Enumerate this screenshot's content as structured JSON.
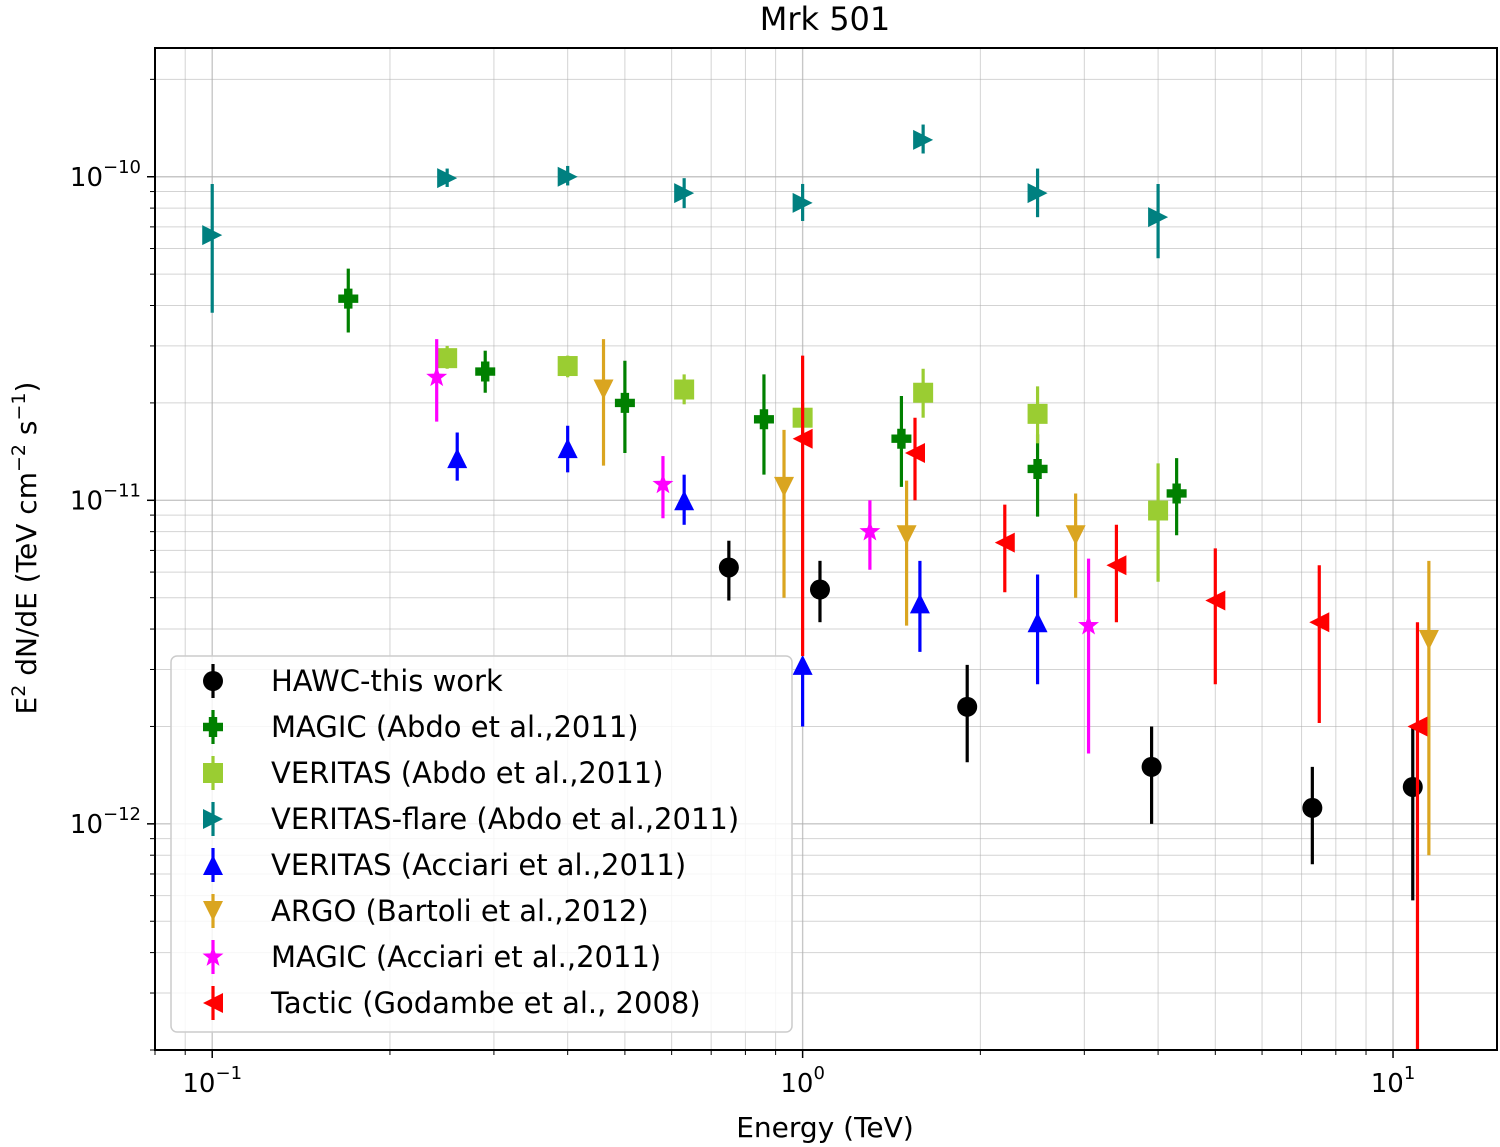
{
  "chart_data": {
    "type": "scatter",
    "title": "Mrk 501",
    "xlabel": "Energy (TeV)",
    "ylabel_parts": {
      "e": "E",
      "e_sup": "2",
      "mid": " dN/dE (TeV cm",
      "cm_sup": "−2",
      "s": " s",
      "s_sup": "−1",
      "end": ")"
    },
    "x_scale": "log",
    "y_scale": "log",
    "xlim": [
      0.08,
      15
    ],
    "ylim": [
      2e-13,
      2.5e-10
    ],
    "grid": true,
    "legend_position": "lower left",
    "x_ticks": [
      {
        "value": 0.1,
        "base": "10",
        "exp": "−1"
      },
      {
        "value": 1,
        "base": "10",
        "exp": "0"
      },
      {
        "value": 10,
        "base": "10",
        "exp": "1"
      }
    ],
    "y_ticks": [
      {
        "value": 1e-12,
        "base": "10",
        "exp": "−12"
      },
      {
        "value": 1e-11,
        "base": "10",
        "exp": "−11"
      },
      {
        "value": 1e-10,
        "base": "10",
        "exp": "−10"
      }
    ],
    "series": [
      {
        "name": "HAWC-this work",
        "color": "#000000",
        "marker": "circle",
        "points": [
          {
            "x": 0.75,
            "y": 6.2e-12,
            "lo": 4.9e-12,
            "hi": 7.5e-12
          },
          {
            "x": 1.07,
            "y": 5.3e-12,
            "lo": 4.2e-12,
            "hi": 6.5e-12
          },
          {
            "x": 1.9,
            "y": 2.3e-12,
            "lo": 1.55e-12,
            "hi": 3.1e-12
          },
          {
            "x": 3.9,
            "y": 1.5e-12,
            "lo": 1e-12,
            "hi": 2e-12
          },
          {
            "x": 7.3,
            "y": 1.12e-12,
            "lo": 7.5e-13,
            "hi": 1.5e-12
          },
          {
            "x": 10.8,
            "y": 1.3e-12,
            "lo": 5.8e-13,
            "hi": 2e-12
          }
        ]
      },
      {
        "name": "MAGIC (Abdo et al.,2011)",
        "color": "#008000",
        "marker": "plus",
        "points": [
          {
            "x": 0.17,
            "y": 4.2e-11,
            "lo": 3.3e-11,
            "hi": 5.2e-11
          },
          {
            "x": 0.29,
            "y": 2.5e-11,
            "lo": 2.15e-11,
            "hi": 2.9e-11
          },
          {
            "x": 0.5,
            "y": 2e-11,
            "lo": 1.4e-11,
            "hi": 2.7e-11
          },
          {
            "x": 0.86,
            "y": 1.78e-11,
            "lo": 1.2e-11,
            "hi": 2.45e-11
          },
          {
            "x": 1.47,
            "y": 1.55e-11,
            "lo": 1.1e-11,
            "hi": 2.1e-11
          },
          {
            "x": 2.5,
            "y": 1.25e-11,
            "lo": 8.9e-12,
            "hi": 1.6e-11
          },
          {
            "x": 4.3,
            "y": 1.05e-11,
            "lo": 7.8e-12,
            "hi": 1.35e-11
          }
        ]
      },
      {
        "name": "VERITAS (Abdo et al.,2011)",
        "color": "#9acd32",
        "marker": "square",
        "points": [
          {
            "x": 0.25,
            "y": 2.75e-11,
            "lo": 2.55e-11,
            "hi": 3e-11
          },
          {
            "x": 0.4,
            "y": 2.6e-11,
            "lo": 2.4e-11,
            "hi": 2.8e-11
          },
          {
            "x": 0.63,
            "y": 2.2e-11,
            "lo": 1.98e-11,
            "hi": 2.45e-11
          },
          {
            "x": 1.0,
            "y": 1.8e-11,
            "lo": 1.6e-11,
            "hi": 2e-11
          },
          {
            "x": 1.6,
            "y": 2.15e-11,
            "lo": 1.8e-11,
            "hi": 2.55e-11
          },
          {
            "x": 2.5,
            "y": 1.85e-11,
            "lo": 1.5e-11,
            "hi": 2.25e-11
          },
          {
            "x": 4.0,
            "y": 9.3e-12,
            "lo": 5.6e-12,
            "hi": 1.3e-11
          }
        ]
      },
      {
        "name": "VERITAS-flare (Abdo et al.,2011)",
        "color": "#008080",
        "marker": "triangle-right",
        "points": [
          {
            "x": 0.1,
            "y": 6.6e-11,
            "lo": 3.8e-11,
            "hi": 9.5e-11
          },
          {
            "x": 0.25,
            "y": 9.9e-11,
            "lo": 9.3e-11,
            "hi": 1.06e-10
          },
          {
            "x": 0.4,
            "y": 1e-10,
            "lo": 9.4e-11,
            "hi": 1.08e-10
          },
          {
            "x": 0.63,
            "y": 8.9e-11,
            "lo": 8e-11,
            "hi": 9.9e-11
          },
          {
            "x": 1.0,
            "y": 8.3e-11,
            "lo": 7.3e-11,
            "hi": 9.5e-11
          },
          {
            "x": 1.6,
            "y": 1.3e-10,
            "lo": 1.18e-10,
            "hi": 1.45e-10
          },
          {
            "x": 2.5,
            "y": 8.9e-11,
            "lo": 7.5e-11,
            "hi": 1.06e-10
          },
          {
            "x": 4.0,
            "y": 7.5e-11,
            "lo": 5.6e-11,
            "hi": 9.5e-11
          }
        ]
      },
      {
        "name": "VERITAS (Acciari et al.,2011)",
        "color": "#0000ff",
        "marker": "triangle-up",
        "points": [
          {
            "x": 0.26,
            "y": 1.35e-11,
            "lo": 1.15e-11,
            "hi": 1.62e-11
          },
          {
            "x": 0.4,
            "y": 1.45e-11,
            "lo": 1.22e-11,
            "hi": 1.7e-11
          },
          {
            "x": 0.63,
            "y": 1e-11,
            "lo": 8.4e-12,
            "hi": 1.2e-11
          },
          {
            "x": 1.0,
            "y": 3.1e-12,
            "lo": 2e-12,
            "hi": 3.2e-12
          },
          {
            "x": 1.58,
            "y": 4.8e-12,
            "lo": 3.4e-12,
            "hi": 6.5e-12
          },
          {
            "x": 2.5,
            "y": 4.2e-12,
            "lo": 2.7e-12,
            "hi": 5.9e-12
          }
        ]
      },
      {
        "name": "ARGO (Bartoli et al.,2012)",
        "color": "#daa520",
        "marker": "triangle-down",
        "points": [
          {
            "x": 0.46,
            "y": 2.2e-11,
            "lo": 1.28e-11,
            "hi": 3.15e-11
          },
          {
            "x": 0.93,
            "y": 1.1e-11,
            "lo": 5e-12,
            "hi": 1.65e-11
          },
          {
            "x": 1.5,
            "y": 7.8e-12,
            "lo": 4.1e-12,
            "hi": 1.15e-11
          },
          {
            "x": 2.9,
            "y": 7.8e-12,
            "lo": 5e-12,
            "hi": 1.05e-11
          },
          {
            "x": 11.5,
            "y": 3.7e-12,
            "lo": 8e-13,
            "hi": 6.5e-12
          }
        ]
      },
      {
        "name": "MAGIC (Acciari et al.,2011)",
        "color": "#ff00ff",
        "marker": "star",
        "points": [
          {
            "x": 0.24,
            "y": 2.4e-11,
            "lo": 1.75e-11,
            "hi": 3.15e-11
          },
          {
            "x": 0.58,
            "y": 1.12e-11,
            "lo": 8.8e-12,
            "hi": 1.37e-11
          },
          {
            "x": 1.3,
            "y": 8e-12,
            "lo": 6.1e-12,
            "hi": 1e-11
          },
          {
            "x": 3.05,
            "y": 4.1e-12,
            "lo": 1.65e-12,
            "hi": 6.6e-12
          }
        ]
      },
      {
        "name": "Tactic (Godambe et al., 2008)",
        "color": "#ff0000",
        "marker": "triangle-left",
        "points": [
          {
            "x": 1.0,
            "y": 1.55e-11,
            "lo": 3.3e-12,
            "hi": 2.8e-11
          },
          {
            "x": 1.55,
            "y": 1.4e-11,
            "lo": 1e-11,
            "hi": 1.8e-11
          },
          {
            "x": 2.2,
            "y": 7.4e-12,
            "lo": 5.2e-12,
            "hi": 9.7e-12
          },
          {
            "x": 3.4,
            "y": 6.3e-12,
            "lo": 4.2e-12,
            "hi": 8.4e-12
          },
          {
            "x": 5.0,
            "y": 4.9e-12,
            "lo": 2.7e-12,
            "hi": 7.1e-12
          },
          {
            "x": 7.5,
            "y": 4.2e-12,
            "lo": 2.05e-12,
            "hi": 6.3e-12
          },
          {
            "x": 11.0,
            "y": 2e-12,
            "lo": 2e-13,
            "hi": 4.2e-12
          }
        ]
      }
    ]
  }
}
